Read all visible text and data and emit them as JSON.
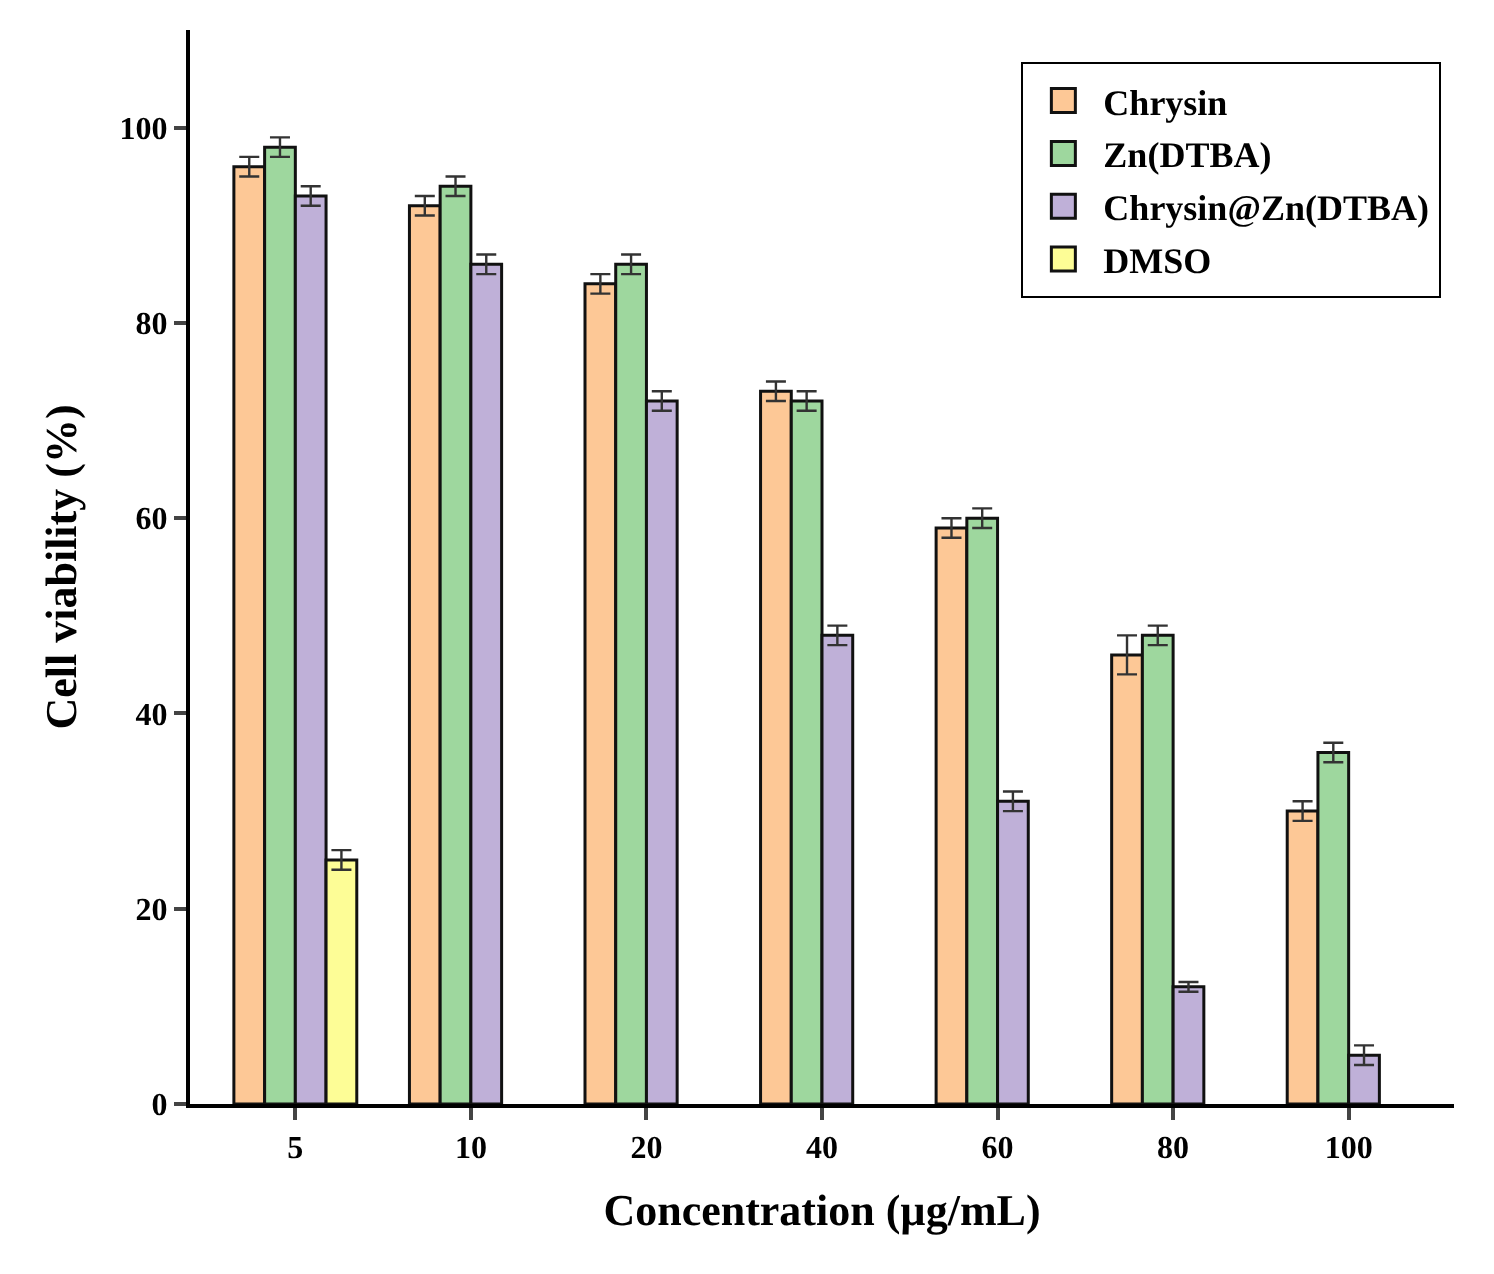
{
  "chart_data": {
    "type": "bar",
    "xlabel": "Concentration (µg/mL)",
    "ylabel": "Cell viability (%)",
    "categories": [
      "5",
      "10",
      "20",
      "40",
      "60",
      "80",
      "100"
    ],
    "series": [
      {
        "name": "Chrysin",
        "color": "#fdc896",
        "values": [
          96,
          92,
          84,
          73,
          59,
          46,
          30
        ],
        "errors": [
          1,
          1,
          1,
          1,
          1,
          2,
          1
        ]
      },
      {
        "name": "Zn(DTBA)",
        "color": "#9ed79e",
        "values": [
          98,
          94,
          86,
          72,
          60,
          48,
          36
        ],
        "errors": [
          1,
          1,
          1,
          1,
          1,
          1,
          1
        ]
      },
      {
        "name": "Chrysin@Zn(DTBA)",
        "color": "#bfb0d8",
        "values": [
          93,
          86,
          72,
          48,
          31,
          12,
          5
        ],
        "errors": [
          1,
          1,
          1,
          1,
          1,
          0.5,
          1
        ]
      },
      {
        "name": "DMSO",
        "color": "#fdfd96",
        "values": [
          25,
          null,
          null,
          null,
          null,
          null,
          null
        ],
        "errors": [
          1,
          null,
          null,
          null,
          null,
          null,
          null
        ]
      }
    ],
    "ylim": [
      0,
      110
    ],
    "yticks": [
      0,
      20,
      40,
      60,
      80,
      100
    ],
    "legend": "top right"
  }
}
